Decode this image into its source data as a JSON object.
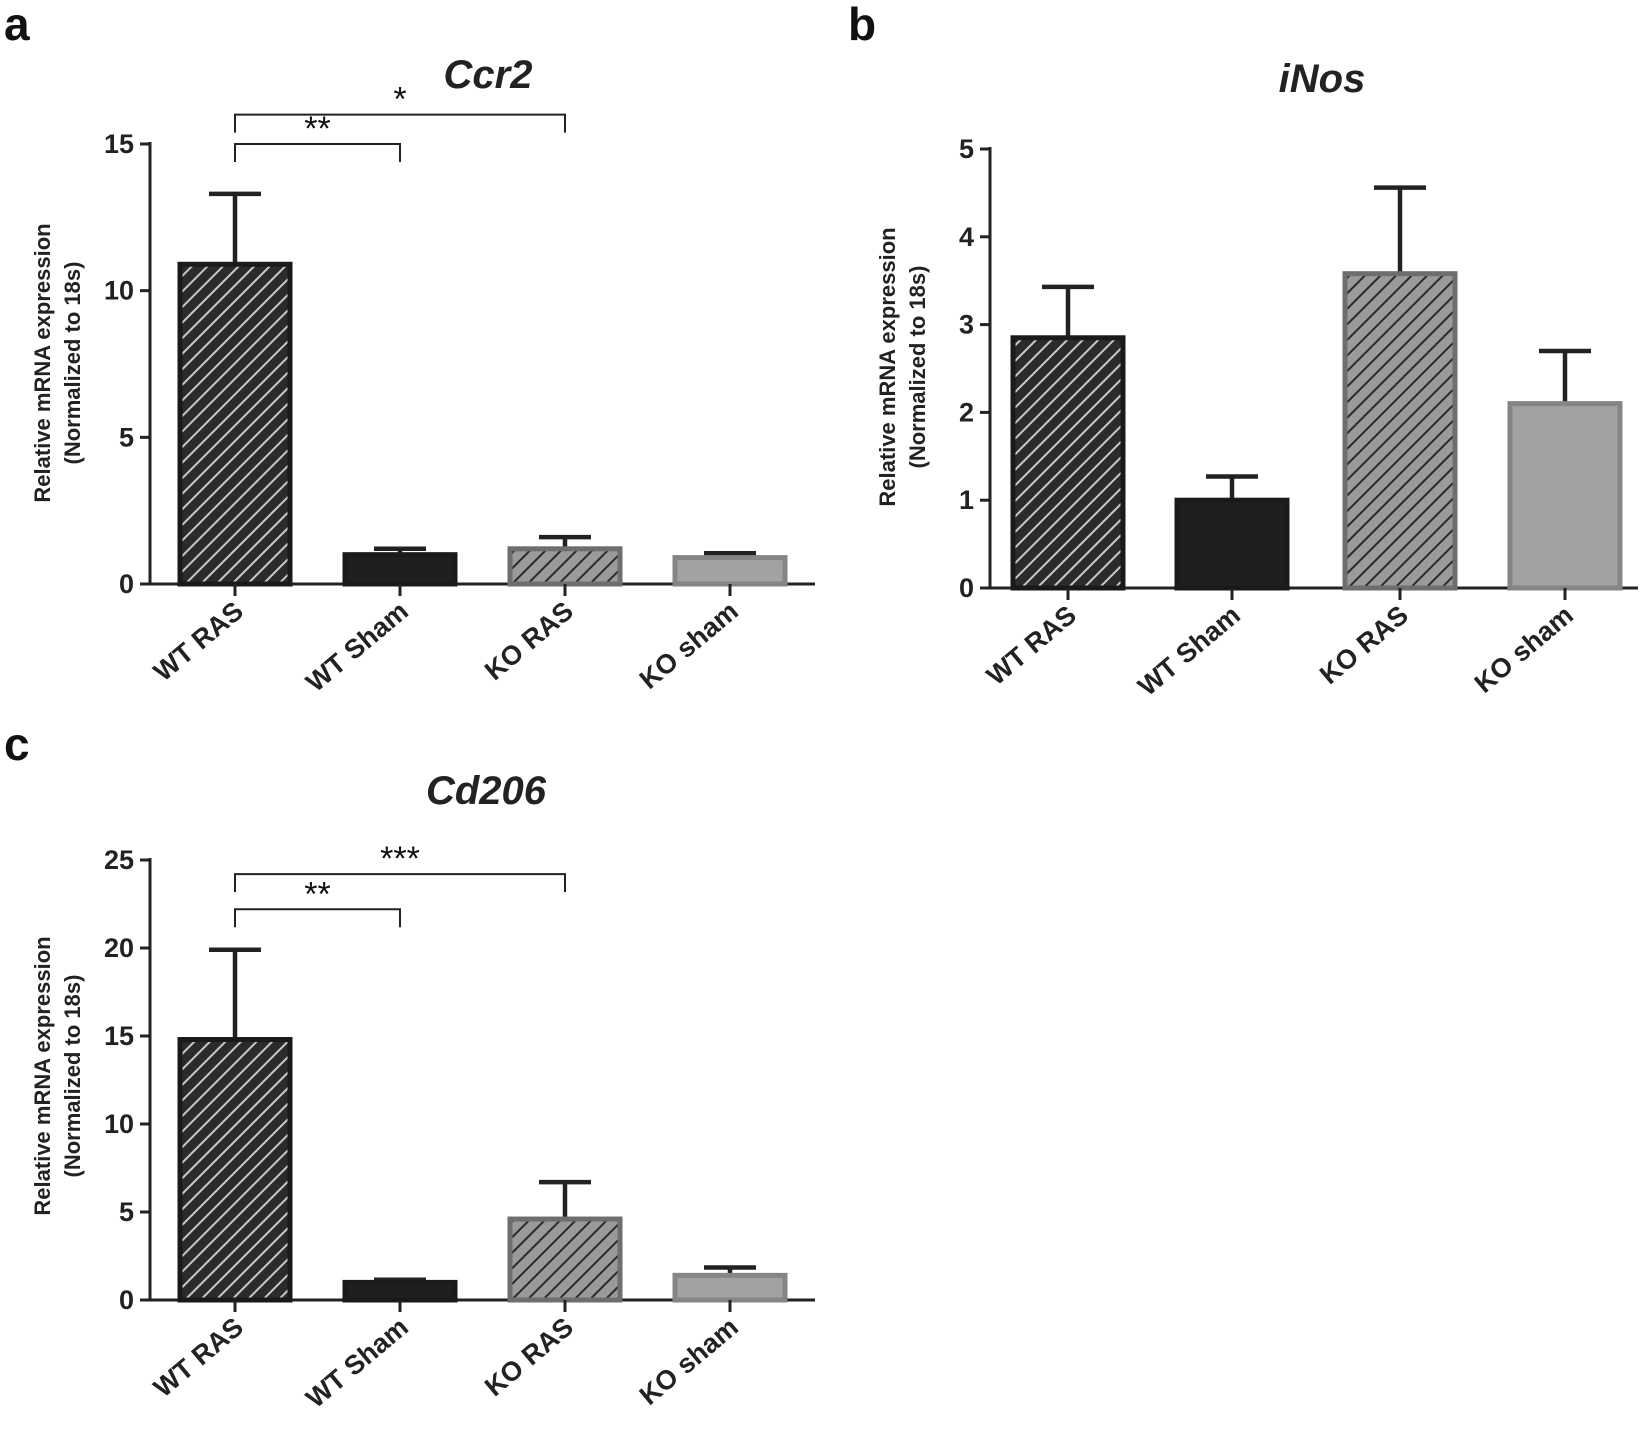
{
  "panels": [
    {
      "letter": "a",
      "chart_title": "Ccr2",
      "y_label_line1": "Relative mRNA expression",
      "y_label_line2": "(Normalized to 18s)",
      "categories": [
        "WT RAS",
        "WT Sham",
        "KO RAS",
        "KO sham"
      ]
    },
    {
      "letter": "b",
      "chart_title": "iNos",
      "y_label_line1": "Relative mRNA expression",
      "y_label_line2": "(Normalized to 18s)",
      "categories": [
        "WT RAS",
        "WT Sham",
        "KO RAS",
        "KO sham"
      ]
    },
    {
      "letter": "c",
      "chart_title": "Cd206",
      "y_label_line1": "Relative mRNA expression",
      "y_label_line2": "(Normalized to 18s)",
      "categories": [
        "WT RAS",
        "WT Sham",
        "KO RAS",
        "KO sham"
      ]
    }
  ],
  "chart_data": [
    {
      "type": "bar",
      "title": "Ccr2",
      "panel": "a",
      "ylabel": "Relative mRNA expression (Normalized to 18s)",
      "categories": [
        "WT RAS",
        "WT Sham",
        "KO RAS",
        "KO sham"
      ],
      "values": [
        10.9,
        1.0,
        1.2,
        0.9
      ],
      "errors": [
        2.4,
        0.2,
        0.4,
        0.15
      ],
      "ylim": [
        0,
        15
      ],
      "yticks": [
        0,
        5,
        10,
        15
      ],
      "significance": [
        {
          "from": "WT RAS",
          "to": "WT Sham",
          "label": "**",
          "level": 15.0
        },
        {
          "from": "WT RAS",
          "to": "KO RAS",
          "label": "*",
          "level": 16.0
        }
      ]
    },
    {
      "type": "bar",
      "title": "iNos",
      "panel": "b",
      "ylabel": "Relative mRNA expression (Normalized to 18s)",
      "categories": [
        "WT RAS",
        "WT Sham",
        "KO RAS",
        "KO sham"
      ],
      "values": [
        2.85,
        1.0,
        3.58,
        2.1
      ],
      "errors": [
        0.58,
        0.27,
        0.98,
        0.6
      ],
      "ylim": [
        0,
        5
      ],
      "yticks": [
        0,
        1,
        2,
        3,
        4,
        5
      ],
      "significance": []
    },
    {
      "type": "bar",
      "title": "Cd206",
      "panel": "c",
      "ylabel": "Relative mRNA expression (Normalized to 18s)",
      "categories": [
        "WT RAS",
        "WT Sham",
        "KO RAS",
        "KO sham"
      ],
      "values": [
        14.8,
        1.0,
        4.6,
        1.4
      ],
      "errors": [
        5.1,
        0.15,
        2.1,
        0.45
      ],
      "ylim": [
        0,
        25
      ],
      "yticks": [
        0,
        5,
        10,
        15,
        20,
        25
      ],
      "significance": [
        {
          "from": "WT RAS",
          "to": "WT Sham",
          "label": "**",
          "level": 22.2
        },
        {
          "from": "WT RAS",
          "to": "KO RAS",
          "label": "***",
          "level": 24.2
        }
      ]
    }
  ],
  "bar_styles": [
    {
      "fill": "#2b2b2b",
      "hatch": "#c8c8c8",
      "stroke": "#1a1a1a",
      "hatched": true
    },
    {
      "fill": "#1f1f1f",
      "hatch": "",
      "stroke": "#1a1a1a",
      "hatched": false
    },
    {
      "fill": "#9a9a9a",
      "hatch": "#2a2a2a",
      "stroke": "#6e6e6e",
      "hatched": true
    },
    {
      "fill": "#a2a2a2",
      "hatch": "",
      "stroke": "#858585",
      "hatched": false
    }
  ]
}
